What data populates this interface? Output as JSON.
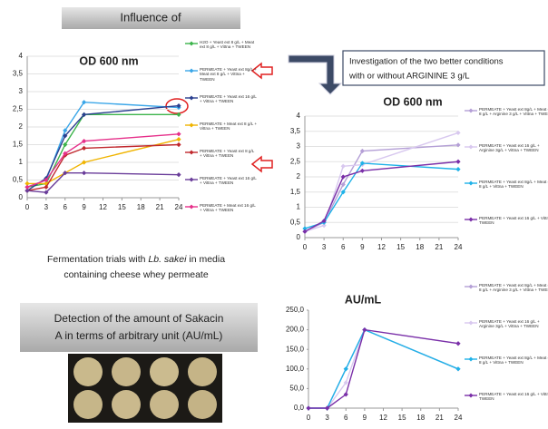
{
  "header": {
    "title": "Influence of"
  },
  "annotation_box": {
    "lines": [
      "Investigation of the two better conditions",
      "with or without ARGININE 3 g/L"
    ]
  },
  "caption": {
    "line1_start": "Fermentation trials with ",
    "line1_italic": "Lb. sakei",
    "line1_end": " in media",
    "line2": "containing cheese whey permeate"
  },
  "detection_box": {
    "lines": [
      "Detection of the amount of Sakacin",
      "A in terms of  arbitrary unit (AU/mL)"
    ]
  },
  "chart_data": [
    {
      "type": "line",
      "title": "OD 600 nm",
      "x": [
        0,
        3,
        6,
        9,
        24
      ],
      "xlim": [
        0,
        24
      ],
      "xticks": [
        0,
        3,
        6,
        9,
        12,
        15,
        18,
        21,
        24
      ],
      "ylim": [
        0,
        4
      ],
      "yticks": [
        0,
        {
          "value": 0.5,
          "label": "0,5"
        },
        1,
        {
          "value": 1.5,
          "label": "1,5"
        },
        2,
        {
          "value": 2.5,
          "label": "2,5"
        },
        3,
        {
          "value": 3.5,
          "label": "3,5"
        },
        4
      ],
      "grid": true,
      "series": [
        {
          "name": "H2O + Yeast ext 8 g/L + Meat ext 8 g/L + Vittna + TWEEN",
          "color": "#3cb44b",
          "values": [
            0.3,
            0.4,
            1.5,
            2.35,
            2.35
          ]
        },
        {
          "name": "PERMEATE + Yeast ext 8g/L + Meat ext 8 g/L + Vittna + TWEEN",
          "color": "#3aa6e8",
          "values": [
            0.3,
            0.5,
            1.9,
            2.7,
            2.55
          ]
        },
        {
          "name": "PERMEATE + Yeast ext 16 g/L + Vittna + TWEEN",
          "color": "#2a3f8f",
          "values": [
            0.2,
            0.55,
            1.75,
            2.35,
            2.6
          ]
        },
        {
          "name": "PERMEATE + Meat ext 8 g/L + Vittna + TWEEN",
          "color": "#f0b400",
          "values": [
            0.4,
            0.4,
            0.7,
            1.0,
            1.65
          ]
        },
        {
          "name": "PERMEATE + Yeast ext 8 g/L + Vittna + TWEEN",
          "color": "#c0282d",
          "values": [
            0.2,
            0.3,
            1.2,
            1.4,
            1.5
          ]
        },
        {
          "name": "PERMEATE + Yeast ext 16 g/L + Vittna + TWEEN",
          "color": "#6a3d9a",
          "values": [
            0.2,
            0.15,
            0.7,
            0.7,
            0.65
          ]
        },
        {
          "name": "PERMEATE + Meat ext 16 g/L + Vittna + TWEEN",
          "color": "#e6308a",
          "values": [
            0.3,
            0.5,
            1.25,
            1.6,
            1.8
          ]
        }
      ]
    },
    {
      "type": "line",
      "title": "OD 600 nm",
      "x": [
        0,
        3,
        6,
        9,
        24
      ],
      "xlim": [
        0,
        24
      ],
      "xticks": [
        0,
        3,
        6,
        9,
        12,
        15,
        18,
        21,
        24
      ],
      "ylim": [
        0,
        4
      ],
      "yticks": [
        0,
        {
          "value": 0.5,
          "label": "0,5"
        },
        1,
        {
          "value": 1.5,
          "label": "1,5"
        },
        2,
        {
          "value": 2.5,
          "label": "2,5"
        },
        3,
        {
          "value": 3.5,
          "label": "3,5"
        },
        4
      ],
      "grid": true,
      "series": [
        {
          "name": "PERMEATE + Yeast ext 8g/L + Meat ext 8 g/L + Arginine 3 g/L + Vittna + TWEEN",
          "color": "#b49fd6",
          "values": [
            0.2,
            0.5,
            1.75,
            2.85,
            3.05
          ]
        },
        {
          "name": "PERMEATE + Yeast ext 16 g/L + Arginine 3g/L + Vittna + TWEEN",
          "color": "#d8c8ef",
          "values": [
            0.2,
            0.4,
            2.35,
            2.4,
            3.45
          ]
        },
        {
          "name": "PERMEATE + Yeast ext 8g/L + Meat ext 8 g/L + Vittna + TWEEN",
          "color": "#1fb2e8",
          "values": [
            0.3,
            0.5,
            1.5,
            2.45,
            2.25
          ]
        },
        {
          "name": "PERMEATE + Yeast ext 16 g/L + Vittna + TWEEN",
          "color": "#7a2fa8",
          "values": [
            0.2,
            0.55,
            2.0,
            2.2,
            2.5
          ]
        }
      ]
    },
    {
      "type": "line",
      "title": "AU/mL",
      "x": [
        0,
        3,
        6,
        9,
        24
      ],
      "xlim": [
        0,
        24
      ],
      "xticks": [
        0,
        3,
        6,
        9,
        12,
        15,
        18,
        21,
        24
      ],
      "ylim": [
        0,
        250
      ],
      "yticks": [
        {
          "value": 0,
          "label": "0,0"
        },
        {
          "value": 50,
          "label": "50,0"
        },
        {
          "value": 100,
          "label": "100,0"
        },
        {
          "value": 150,
          "label": "150,0"
        },
        {
          "value": 200,
          "label": "200,0"
        },
        {
          "value": 250,
          "label": "250,0"
        }
      ],
      "grid": false,
      "series": [
        {
          "name": "PERMEATE + Yeast ext 8g/L + Meat ext 8 g/L + Arginine 3 g/L + Vittna + TWEEN",
          "color": "#b49fd6",
          "values": [
            0,
            0,
            100,
            200,
            100
          ]
        },
        {
          "name": "PERMEATE + Yeast ext 16 g/L + Arginine 3g/L + Vittna + TWEEN",
          "color": "#d8c8ef",
          "values": [
            0,
            0,
            65,
            200,
            165
          ]
        },
        {
          "name": "PERMEATE + Yeast ext 8g/L + Meat ext 8 g/L + Vittna + TWEEN",
          "color": "#1fb2e8",
          "values": [
            0,
            0,
            100,
            200,
            100
          ]
        },
        {
          "name": "PERMEATE + Yeast ext 16 g/L + Vittna + TWEEN",
          "color": "#7a2fa8",
          "values": [
            0,
            0,
            35,
            200,
            165
          ]
        }
      ]
    }
  ]
}
